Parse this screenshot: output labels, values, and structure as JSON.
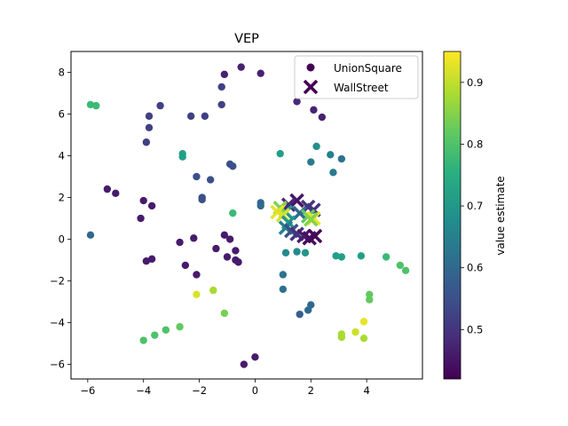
{
  "chart_data": {
    "type": "scatter",
    "title": "VEP",
    "xlabel": "",
    "ylabel": "",
    "xlim": [
      -6.6,
      6.0
    ],
    "ylim": [
      -6.7,
      9.0
    ],
    "xticks": [
      -6,
      -4,
      -2,
      0,
      2,
      4
    ],
    "yticks": [
      -6,
      -4,
      -2,
      0,
      2,
      4,
      6,
      8
    ],
    "grid": false,
    "legend": {
      "placement": "top-right",
      "entries": [
        "UnionSquare",
        "WallStreet"
      ]
    },
    "colorbar": {
      "label": "value estimate",
      "range": [
        0.42,
        0.95
      ],
      "ticks": [
        0.5,
        0.6,
        0.7,
        0.8,
        0.9
      ],
      "colormap": "viridis"
    },
    "series": [
      {
        "name": "UnionSquare",
        "marker": "circle",
        "points": [
          {
            "x": -0.5,
            "y": 8.25,
            "v": 0.47
          },
          {
            "x": -1.1,
            "y": 7.9,
            "v": 0.47
          },
          {
            "x": 0.2,
            "y": 7.95,
            "v": 0.47
          },
          {
            "x": -1.2,
            "y": 7.3,
            "v": 0.52
          },
          {
            "x": -3.4,
            "y": 6.4,
            "v": 0.52
          },
          {
            "x": -1.2,
            "y": 6.45,
            "v": 0.52
          },
          {
            "x": -5.9,
            "y": 6.45,
            "v": 0.78
          },
          {
            "x": -5.7,
            "y": 6.4,
            "v": 0.78
          },
          {
            "x": -3.8,
            "y": 5.9,
            "v": 0.52
          },
          {
            "x": -2.3,
            "y": 5.9,
            "v": 0.52
          },
          {
            "x": -1.8,
            "y": 5.9,
            "v": 0.52
          },
          {
            "x": -3.8,
            "y": 5.35,
            "v": 0.52
          },
          {
            "x": -3.9,
            "y": 4.65,
            "v": 0.52
          },
          {
            "x": 1.5,
            "y": 6.6,
            "v": 0.48
          },
          {
            "x": 2.1,
            "y": 6.2,
            "v": 0.47
          },
          {
            "x": 2.4,
            "y": 5.85,
            "v": 0.47
          },
          {
            "x": -2.6,
            "y": 4.1,
            "v": 0.72
          },
          {
            "x": -2.6,
            "y": 3.95,
            "v": 0.72
          },
          {
            "x": 2.2,
            "y": 4.45,
            "v": 0.68
          },
          {
            "x": 0.9,
            "y": 4.1,
            "v": 0.72
          },
          {
            "x": 2.7,
            "y": 4.05,
            "v": 0.65
          },
          {
            "x": 3.1,
            "y": 3.85,
            "v": 0.62
          },
          {
            "x": 2.0,
            "y": 3.7,
            "v": 0.64
          },
          {
            "x": -0.9,
            "y": 3.6,
            "v": 0.55
          },
          {
            "x": -0.8,
            "y": 3.5,
            "v": 0.55
          },
          {
            "x": 2.8,
            "y": 3.2,
            "v": 0.64
          },
          {
            "x": -2.1,
            "y": 3.0,
            "v": 0.55
          },
          {
            "x": -1.6,
            "y": 2.85,
            "v": 0.55
          },
          {
            "x": -1.9,
            "y": 2.0,
            "v": 0.55
          },
          {
            "x": -1.9,
            "y": 1.9,
            "v": 0.55
          },
          {
            "x": 0.2,
            "y": 1.75,
            "v": 0.6
          },
          {
            "x": 0.2,
            "y": 1.6,
            "v": 0.6
          },
          {
            "x": -5.3,
            "y": 2.4,
            "v": 0.46
          },
          {
            "x": -5.0,
            "y": 2.2,
            "v": 0.46
          },
          {
            "x": -4.0,
            "y": 1.85,
            "v": 0.46
          },
          {
            "x": -3.7,
            "y": 1.6,
            "v": 0.46
          },
          {
            "x": -4.1,
            "y": 1.0,
            "v": 0.46
          },
          {
            "x": -0.8,
            "y": 1.25,
            "v": 0.78
          },
          {
            "x": -5.9,
            "y": 0.2,
            "v": 0.6
          },
          {
            "x": -2.2,
            "y": 0.05,
            "v": 0.46
          },
          {
            "x": -1.1,
            "y": 0.2,
            "v": 0.46
          },
          {
            "x": -0.9,
            "y": 0.0,
            "v": 0.46
          },
          {
            "x": -2.7,
            "y": -0.15,
            "v": 0.46
          },
          {
            "x": -1.4,
            "y": -0.45,
            "v": 0.46
          },
          {
            "x": -0.7,
            "y": -0.55,
            "v": 0.46
          },
          {
            "x": -1.0,
            "y": -0.85,
            "v": 0.46
          },
          {
            "x": -0.7,
            "y": -1.0,
            "v": 0.46
          },
          {
            "x": -0.6,
            "y": -1.1,
            "v": 0.46
          },
          {
            "x": -3.7,
            "y": -0.95,
            "v": 0.46
          },
          {
            "x": -3.9,
            "y": -1.05,
            "v": 0.46
          },
          {
            "x": -2.5,
            "y": -1.25,
            "v": 0.46
          },
          {
            "x": -2.1,
            "y": -1.7,
            "v": 0.46
          },
          {
            "x": 1.1,
            "y": -0.65,
            "v": 0.67
          },
          {
            "x": 1.5,
            "y": -0.6,
            "v": 0.67
          },
          {
            "x": 1.8,
            "y": -0.65,
            "v": 0.7
          },
          {
            "x": 2.9,
            "y": -0.8,
            "v": 0.72
          },
          {
            "x": 3.1,
            "y": -0.85,
            "v": 0.72
          },
          {
            "x": 3.8,
            "y": -0.8,
            "v": 0.72
          },
          {
            "x": 1.0,
            "y": -1.7,
            "v": 0.62
          },
          {
            "x": 1.0,
            "y": -2.4,
            "v": 0.62
          },
          {
            "x": 2.0,
            "y": -3.15,
            "v": 0.6
          },
          {
            "x": 1.9,
            "y": -3.4,
            "v": 0.6
          },
          {
            "x": 1.6,
            "y": -3.6,
            "v": 0.58
          },
          {
            "x": 4.7,
            "y": -0.85,
            "v": 0.78
          },
          {
            "x": 5.2,
            "y": -1.25,
            "v": 0.8
          },
          {
            "x": 5.4,
            "y": -1.5,
            "v": 0.8
          },
          {
            "x": 4.1,
            "y": -2.65,
            "v": 0.82
          },
          {
            "x": 4.1,
            "y": -2.9,
            "v": 0.82
          },
          {
            "x": -2.1,
            "y": -2.65,
            "v": 0.92
          },
          {
            "x": -1.5,
            "y": -2.45,
            "v": 0.88
          },
          {
            "x": -1.1,
            "y": -3.55,
            "v": 0.84
          },
          {
            "x": 3.9,
            "y": -3.95,
            "v": 0.93
          },
          {
            "x": 3.6,
            "y": -4.45,
            "v": 0.91
          },
          {
            "x": 3.1,
            "y": -4.55,
            "v": 0.88
          },
          {
            "x": 3.1,
            "y": -4.7,
            "v": 0.88
          },
          {
            "x": 3.9,
            "y": -4.75,
            "v": 0.88
          },
          {
            "x": -3.2,
            "y": -4.35,
            "v": 0.8
          },
          {
            "x": -3.6,
            "y": -4.6,
            "v": 0.8
          },
          {
            "x": -4.0,
            "y": -4.85,
            "v": 0.8
          },
          {
            "x": -2.7,
            "y": -4.2,
            "v": 0.82
          },
          {
            "x": 0.0,
            "y": -5.65,
            "v": 0.46
          },
          {
            "x": -0.4,
            "y": -6.0,
            "v": 0.46
          }
        ]
      },
      {
        "name": "WallStreet",
        "marker": "x",
        "points": [
          {
            "x": 1.5,
            "y": 1.85,
            "v": 0.45
          },
          {
            "x": 1.2,
            "y": 1.65,
            "v": 0.48
          },
          {
            "x": 1.9,
            "y": 1.55,
            "v": 0.5
          },
          {
            "x": 2.1,
            "y": 1.4,
            "v": 0.5
          },
          {
            "x": 1.6,
            "y": 1.25,
            "v": 0.6
          },
          {
            "x": 1.1,
            "y": 1.3,
            "v": 0.7
          },
          {
            "x": 0.9,
            "y": 1.5,
            "v": 0.85
          },
          {
            "x": 0.8,
            "y": 1.3,
            "v": 0.93
          },
          {
            "x": 1.0,
            "y": 1.15,
            "v": 0.92
          },
          {
            "x": 1.9,
            "y": 1.1,
            "v": 0.82
          },
          {
            "x": 2.1,
            "y": 1.0,
            "v": 0.93
          },
          {
            "x": 2.0,
            "y": 0.95,
            "v": 0.85
          },
          {
            "x": 1.2,
            "y": 0.8,
            "v": 0.7
          },
          {
            "x": 1.1,
            "y": 0.55,
            "v": 0.65
          },
          {
            "x": 1.3,
            "y": 0.4,
            "v": 0.55
          },
          {
            "x": 1.5,
            "y": 0.25,
            "v": 0.5
          },
          {
            "x": 1.75,
            "y": 0.15,
            "v": 0.46
          },
          {
            "x": 1.95,
            "y": 0.05,
            "v": 0.44
          },
          {
            "x": 2.15,
            "y": 0.15,
            "v": 0.43
          }
        ]
      }
    ]
  }
}
